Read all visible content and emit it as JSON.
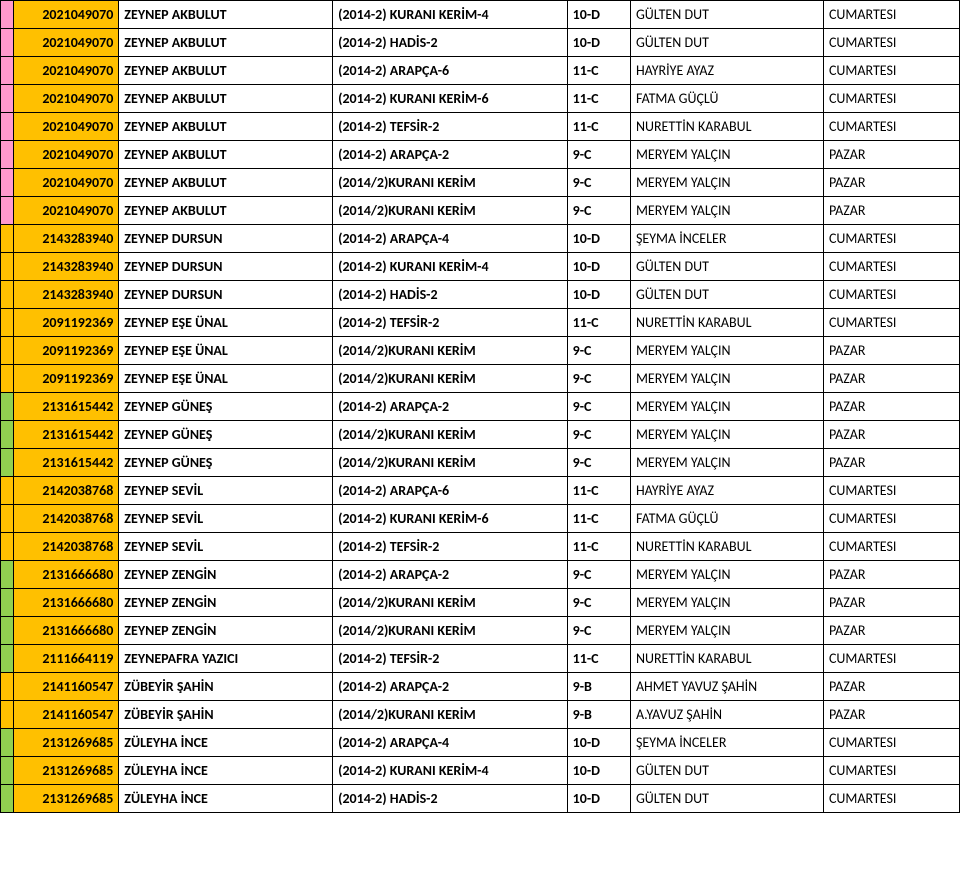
{
  "marker_colors": {
    "pink": "#ff99cc",
    "green": "#92d050",
    "orange": "#ffc000"
  },
  "rows": [
    {
      "marker": "pink",
      "id": "2021049070",
      "name": "ZEYNEP AKBULUT",
      "course": "(2014-2) KURANI KERİM-4",
      "class": "10-D",
      "teacher": "GÜLTEN DUT",
      "day": "CUMARTESI"
    },
    {
      "marker": "pink",
      "id": "2021049070",
      "name": "ZEYNEP AKBULUT",
      "course": "(2014-2) HADİS-2",
      "class": "10-D",
      "teacher": "GÜLTEN DUT",
      "day": "CUMARTESI"
    },
    {
      "marker": "pink",
      "id": "2021049070",
      "name": "ZEYNEP AKBULUT",
      "course": "(2014-2) ARAPÇA-6",
      "class": "11-C",
      "teacher": "HAYRİYE AYAZ",
      "day": "CUMARTESI"
    },
    {
      "marker": "pink",
      "id": "2021049070",
      "name": "ZEYNEP AKBULUT",
      "course": "(2014-2) KURANI KERİM-6",
      "class": "11-C",
      "teacher": "FATMA GÜÇLÜ",
      "day": "CUMARTESI"
    },
    {
      "marker": "pink",
      "id": "2021049070",
      "name": "ZEYNEP AKBULUT",
      "course": "(2014-2) TEFSİR-2",
      "class": "11-C",
      "teacher": "NURETTİN KARABUL",
      "day": "CUMARTESI"
    },
    {
      "marker": "pink",
      "id": "2021049070",
      "name": "ZEYNEP AKBULUT",
      "course": "(2014-2) ARAPÇA-2",
      "class": "9-C",
      "teacher": "MERYEM YALÇIN",
      "day": "PAZAR"
    },
    {
      "marker": "pink",
      "id": "2021049070",
      "name": "ZEYNEP AKBULUT",
      "course": "(2014/2)KURANI KERİM",
      "class": "9-C",
      "teacher": "MERYEM YALÇIN",
      "day": "PAZAR"
    },
    {
      "marker": "pink",
      "id": "2021049070",
      "name": "ZEYNEP AKBULUT",
      "course": "(2014/2)KURANI KERİM",
      "class": "9-C",
      "teacher": "MERYEM YALÇIN",
      "day": "PAZAR"
    },
    {
      "marker": "orange",
      "id": "2143283940",
      "name": "ZEYNEP DURSUN",
      "course": "(2014-2) ARAPÇA-4",
      "class": "10-D",
      "teacher": "ŞEYMA İNCELER",
      "day": "CUMARTESI"
    },
    {
      "marker": "orange",
      "id": "2143283940",
      "name": "ZEYNEP DURSUN",
      "course": "(2014-2) KURANI KERİM-4",
      "class": "10-D",
      "teacher": "GÜLTEN DUT",
      "day": "CUMARTESI"
    },
    {
      "marker": "orange",
      "id": "2143283940",
      "name": "ZEYNEP DURSUN",
      "course": "(2014-2) HADİS-2",
      "class": "10-D",
      "teacher": "GÜLTEN DUT",
      "day": "CUMARTESI"
    },
    {
      "marker": "orange",
      "id": "2091192369",
      "name": "ZEYNEP EŞE ÜNAL",
      "course": "(2014-2) TEFSİR-2",
      "class": "11-C",
      "teacher": "NURETTİN KARABUL",
      "day": "CUMARTESI"
    },
    {
      "marker": "orange",
      "id": "2091192369",
      "name": "ZEYNEP EŞE ÜNAL",
      "course": "(2014/2)KURANI KERİM",
      "class": "9-C",
      "teacher": "MERYEM YALÇIN",
      "day": "PAZAR"
    },
    {
      "marker": "orange",
      "id": "2091192369",
      "name": "ZEYNEP EŞE ÜNAL",
      "course": "(2014/2)KURANI KERİM",
      "class": "9-C",
      "teacher": "MERYEM YALÇIN",
      "day": "PAZAR"
    },
    {
      "marker": "green",
      "id": "2131615442",
      "name": "ZEYNEP GÜNEŞ",
      "course": "(2014-2) ARAPÇA-2",
      "class": "9-C",
      "teacher": "MERYEM YALÇIN",
      "day": "PAZAR"
    },
    {
      "marker": "green",
      "id": "2131615442",
      "name": "ZEYNEP GÜNEŞ",
      "course": "(2014/2)KURANI KERİM",
      "class": "9-C",
      "teacher": "MERYEM YALÇIN",
      "day": "PAZAR"
    },
    {
      "marker": "green",
      "id": "2131615442",
      "name": "ZEYNEP GÜNEŞ",
      "course": "(2014/2)KURANI KERİM",
      "class": "9-C",
      "teacher": "MERYEM YALÇIN",
      "day": "PAZAR"
    },
    {
      "marker": "orange",
      "id": "2142038768",
      "name": "ZEYNEP SEVİL",
      "course": "(2014-2) ARAPÇA-6",
      "class": "11-C",
      "teacher": "HAYRİYE AYAZ",
      "day": "CUMARTESI"
    },
    {
      "marker": "orange",
      "id": "2142038768",
      "name": "ZEYNEP SEVİL",
      "course": "(2014-2) KURANI KERİM-6",
      "class": "11-C",
      "teacher": "FATMA GÜÇLÜ",
      "day": "CUMARTESI"
    },
    {
      "marker": "orange",
      "id": "2142038768",
      "name": "ZEYNEP SEVİL",
      "course": "(2014-2) TEFSİR-2",
      "class": "11-C",
      "teacher": "NURETTİN KARABUL",
      "day": "CUMARTESI"
    },
    {
      "marker": "green",
      "id": "2131666680",
      "name": "ZEYNEP ZENGİN",
      "course": "(2014-2) ARAPÇA-2",
      "class": "9-C",
      "teacher": "MERYEM YALÇIN",
      "day": "PAZAR"
    },
    {
      "marker": "green",
      "id": "2131666680",
      "name": "ZEYNEP ZENGİN",
      "course": "(2014/2)KURANI KERİM",
      "class": "9-C",
      "teacher": "MERYEM YALÇIN",
      "day": "PAZAR"
    },
    {
      "marker": "green",
      "id": "2131666680",
      "name": "ZEYNEP ZENGİN",
      "course": "(2014/2)KURANI KERİM",
      "class": "9-C",
      "teacher": "MERYEM YALÇIN",
      "day": "PAZAR"
    },
    {
      "marker": "green",
      "id": "2111664119",
      "name": "ZEYNEPAFRA YAZICI",
      "course": "(2014-2) TEFSİR-2",
      "class": "11-C",
      "teacher": "NURETTİN KARABUL",
      "day": "CUMARTESI"
    },
    {
      "marker": "orange",
      "id": "2141160547",
      "name": "ZÜBEYİR ŞAHİN",
      "course": "(2014-2) ARAPÇA-2",
      "class": "9-B",
      "teacher": "AHMET YAVUZ ŞAHİN",
      "day": "PAZAR"
    },
    {
      "marker": "orange",
      "id": "2141160547",
      "name": "ZÜBEYİR ŞAHİN",
      "course": "(2014/2)KURANI KERİM",
      "class": "9-B",
      "teacher": "A.YAVUZ ŞAHİN",
      "day": "PAZAR"
    },
    {
      "marker": "green",
      "id": "2131269685",
      "name": "ZÜLEYHA İNCE",
      "course": "(2014-2) ARAPÇA-4",
      "class": "10-D",
      "teacher": "ŞEYMA İNCELER",
      "day": "CUMARTESI"
    },
    {
      "marker": "green",
      "id": "2131269685",
      "name": "ZÜLEYHA İNCE",
      "course": "(2014-2) KURANI KERİM-4",
      "class": "10-D",
      "teacher": "GÜLTEN DUT",
      "day": "CUMARTESI"
    },
    {
      "marker": "green",
      "id": "2131269685",
      "name": "ZÜLEYHA İNCE",
      "course": "(2014-2) HADİS-2",
      "class": "10-D",
      "teacher": "GÜLTEN DUT",
      "day": "CUMARTESI"
    }
  ]
}
